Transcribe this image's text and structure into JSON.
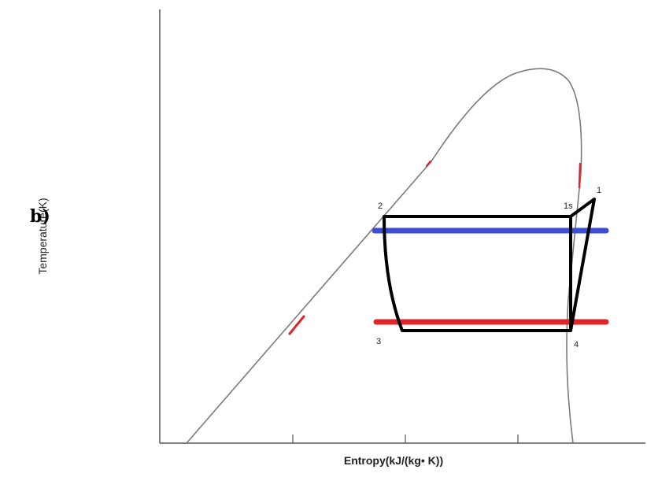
{
  "figure": {
    "part_label": "b)",
    "y_axis_label": "Temperature(K)",
    "x_axis_label": "Entropy(kJ/(kg• K))"
  },
  "state_points": [
    {
      "id": "p1",
      "label": "1"
    },
    {
      "id": "p1s",
      "label": "1s"
    },
    {
      "id": "p2",
      "label": "2"
    },
    {
      "id": "p3",
      "label": "3"
    },
    {
      "id": "p4",
      "label": "4"
    }
  ],
  "lines": {
    "condenser_temperature_color": "#3b4fd0",
    "evaporator_temperature_color": "#e0242a",
    "cycle_color": "#000000",
    "saturation_dome_color": "#7a7a7a",
    "axis_color": "#555555"
  }
}
